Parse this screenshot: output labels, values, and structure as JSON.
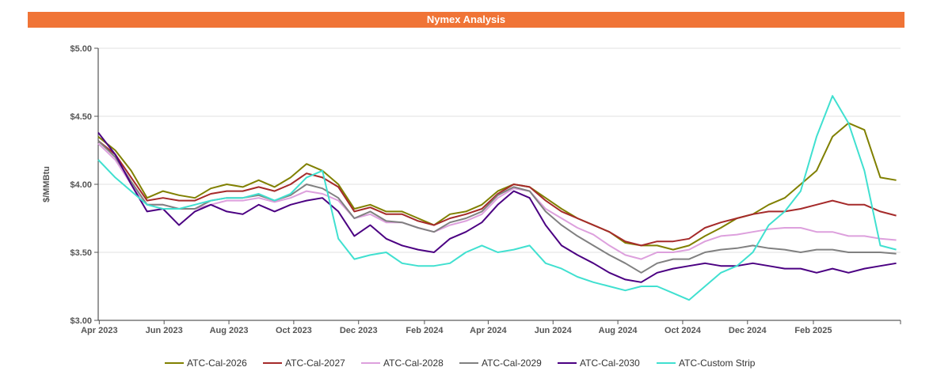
{
  "chart_data": {
    "type": "line",
    "title": "Nymex Analysis",
    "ylabel": "$/MMBtu",
    "xlabel": "",
    "ylim": [
      3.0,
      5.0
    ],
    "xlim": [
      "2023-03-31",
      "2025-04-24"
    ],
    "yticks": [
      {
        "value": 3.0,
        "label": "$3.00"
      },
      {
        "value": 3.5,
        "label": "$3.50"
      },
      {
        "value": 4.0,
        "label": "$4.00"
      },
      {
        "value": 4.5,
        "label": "$4.50"
      },
      {
        "value": 5.0,
        "label": "$5.00"
      }
    ],
    "xticks": [
      {
        "date": "2023-04-01",
        "label": "Apr 2023"
      },
      {
        "date": "2023-06-01",
        "label": "Jun 2023"
      },
      {
        "date": "2023-08-01",
        "label": "Aug 2023"
      },
      {
        "date": "2023-10-01",
        "label": "Oct 2023"
      },
      {
        "date": "2023-12-01",
        "label": "Dec 2023"
      },
      {
        "date": "2024-02-01",
        "label": "Feb 2024"
      },
      {
        "date": "2024-04-01",
        "label": "Apr 2024"
      },
      {
        "date": "2024-06-01",
        "label": "Jun 2024"
      },
      {
        "date": "2024-08-01",
        "label": "Aug 2024"
      },
      {
        "date": "2024-10-01",
        "label": "Oct 2024"
      },
      {
        "date": "2024-12-01",
        "label": "Dec 2024"
      },
      {
        "date": "2025-02-01",
        "label": "Feb 2025"
      }
    ],
    "grid": true,
    "legend_position": "bottom",
    "x": [
      "2023-03-31",
      "2023-04-16",
      "2023-05-01",
      "2023-05-16",
      "2023-05-31",
      "2023-06-15",
      "2023-06-30",
      "2023-07-15",
      "2023-07-30",
      "2023-08-14",
      "2023-08-29",
      "2023-09-13",
      "2023-09-28",
      "2023-10-13",
      "2023-10-28",
      "2023-11-12",
      "2023-11-27",
      "2023-12-12",
      "2023-12-27",
      "2024-01-11",
      "2024-01-26",
      "2024-02-10",
      "2024-02-25",
      "2024-03-11",
      "2024-03-26",
      "2024-04-10",
      "2024-04-25",
      "2024-05-10",
      "2024-05-25",
      "2024-06-09",
      "2024-06-24",
      "2024-07-09",
      "2024-07-24",
      "2024-08-08",
      "2024-08-23",
      "2024-09-07",
      "2024-09-22",
      "2024-10-07",
      "2024-10-22",
      "2024-11-06",
      "2024-11-21",
      "2024-12-06",
      "2024-12-21",
      "2025-01-05",
      "2025-01-20",
      "2025-02-04",
      "2025-02-19",
      "2025-03-06",
      "2025-03-21",
      "2025-04-05",
      "2025-04-20"
    ],
    "series": [
      {
        "name": "ATC-Cal-2026",
        "color": "#808000",
        "values": [
          4.35,
          4.25,
          4.1,
          3.9,
          3.95,
          3.92,
          3.9,
          3.97,
          4.0,
          3.98,
          4.03,
          3.98,
          4.05,
          4.15,
          4.1,
          4.0,
          3.82,
          3.85,
          3.8,
          3.8,
          3.75,
          3.7,
          3.78,
          3.8,
          3.85,
          3.95,
          4.0,
          3.98,
          3.9,
          3.82,
          3.75,
          3.7,
          3.65,
          3.57,
          3.55,
          3.55,
          3.52,
          3.55,
          3.62,
          3.68,
          3.75,
          3.78,
          3.85,
          3.9,
          4.0,
          4.1,
          4.35,
          4.45,
          4.4,
          4.05,
          4.03
        ]
      },
      {
        "name": "ATC-Cal-2027",
        "color": "#a52a2a",
        "values": [
          4.32,
          4.22,
          4.05,
          3.88,
          3.9,
          3.88,
          3.88,
          3.93,
          3.95,
          3.95,
          3.98,
          3.95,
          4.0,
          4.08,
          4.05,
          3.98,
          3.8,
          3.83,
          3.78,
          3.78,
          3.73,
          3.7,
          3.75,
          3.78,
          3.82,
          3.93,
          4.0,
          3.98,
          3.88,
          3.8,
          3.75,
          3.7,
          3.65,
          3.58,
          3.55,
          3.58,
          3.58,
          3.6,
          3.68,
          3.72,
          3.75,
          3.78,
          3.8,
          3.8,
          3.82,
          3.85,
          3.88,
          3.85,
          3.85,
          3.8,
          3.77
        ]
      },
      {
        "name": "ATC-Cal-2028",
        "color": "#dda0dd",
        "values": [
          4.3,
          4.18,
          4.0,
          3.85,
          3.85,
          3.82,
          3.82,
          3.85,
          3.88,
          3.88,
          3.9,
          3.87,
          3.9,
          3.95,
          3.93,
          3.88,
          3.75,
          3.78,
          3.72,
          3.72,
          3.68,
          3.65,
          3.7,
          3.73,
          3.78,
          3.9,
          3.97,
          3.95,
          3.82,
          3.75,
          3.68,
          3.63,
          3.55,
          3.48,
          3.45,
          3.5,
          3.5,
          3.52,
          3.58,
          3.62,
          3.63,
          3.65,
          3.67,
          3.68,
          3.68,
          3.65,
          3.65,
          3.62,
          3.62,
          3.6,
          3.59
        ]
      },
      {
        "name": "ATC-Cal-2029",
        "color": "#808080",
        "values": [
          4.32,
          4.2,
          4.02,
          3.85,
          3.85,
          3.82,
          3.82,
          3.88,
          3.9,
          3.9,
          3.92,
          3.88,
          3.92,
          4.0,
          3.97,
          3.9,
          3.75,
          3.8,
          3.73,
          3.72,
          3.68,
          3.65,
          3.72,
          3.75,
          3.8,
          3.92,
          3.98,
          3.95,
          3.8,
          3.7,
          3.62,
          3.55,
          3.48,
          3.42,
          3.35,
          3.42,
          3.45,
          3.45,
          3.5,
          3.52,
          3.53,
          3.55,
          3.53,
          3.52,
          3.5,
          3.52,
          3.52,
          3.5,
          3.5,
          3.5,
          3.49
        ]
      },
      {
        "name": "ATC-Cal-2030",
        "color": "#4b0082",
        "values": [
          4.38,
          4.22,
          4.0,
          3.8,
          3.82,
          3.7,
          3.8,
          3.85,
          3.8,
          3.78,
          3.85,
          3.8,
          3.85,
          3.88,
          3.9,
          3.8,
          3.62,
          3.7,
          3.6,
          3.55,
          3.52,
          3.5,
          3.6,
          3.65,
          3.72,
          3.85,
          3.95,
          3.9,
          3.7,
          3.55,
          3.48,
          3.42,
          3.35,
          3.3,
          3.28,
          3.35,
          3.38,
          3.4,
          3.42,
          3.4,
          3.4,
          3.42,
          3.4,
          3.38,
          3.38,
          3.35,
          3.38,
          3.35,
          3.38,
          3.4,
          3.42
        ]
      },
      {
        "name": "ATC-Custom Strip",
        "color": "#40e0d0",
        "values": [
          4.18,
          4.05,
          3.95,
          3.85,
          3.82,
          3.82,
          3.85,
          3.88,
          3.9,
          3.9,
          3.93,
          3.88,
          3.93,
          4.05,
          4.1,
          3.6,
          3.45,
          3.48,
          3.5,
          3.42,
          3.4,
          3.4,
          3.42,
          3.5,
          3.55,
          3.5,
          3.52,
          3.55,
          3.42,
          3.38,
          3.32,
          3.28,
          3.25,
          3.22,
          3.25,
          3.25,
          3.2,
          3.15,
          3.25,
          3.35,
          3.4,
          3.5,
          3.7,
          3.8,
          3.95,
          4.35,
          4.65,
          4.45,
          4.1,
          3.55,
          3.52
        ]
      }
    ]
  }
}
